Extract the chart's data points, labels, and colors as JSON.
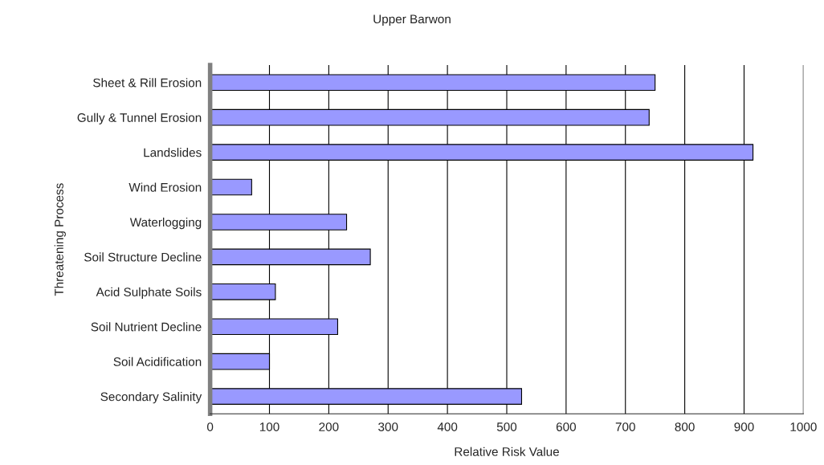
{
  "chart_data": {
    "type": "bar",
    "orientation": "horizontal",
    "title": "Upper Barwon",
    "xlabel": "Relative Risk Value",
    "ylabel": "Threatening Process",
    "categories": [
      "Sheet & Rill Erosion",
      "Gully & Tunnel Erosion",
      "Landslides",
      "Wind Erosion",
      "Waterlogging",
      "Soil Structure Decline",
      "Acid Sulphate Soils",
      "Soil Nutrient Decline",
      "Soil Acidification",
      "Secondary Salinity"
    ],
    "values": [
      750,
      740,
      915,
      70,
      230,
      270,
      110,
      215,
      100,
      525
    ],
    "color": "#9999ff",
    "xlim": [
      0,
      1000
    ],
    "xticks": [
      0,
      100,
      200,
      300,
      400,
      500,
      600,
      700,
      800,
      900,
      1000
    ],
    "grid": "x"
  }
}
